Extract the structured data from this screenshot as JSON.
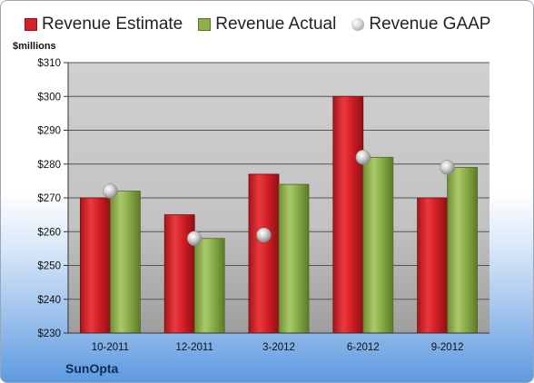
{
  "chart_data": {
    "type": "bar",
    "categories": [
      "10-2011",
      "12-2011",
      "3-2012",
      "6-2012",
      "9-2012"
    ],
    "series": [
      {
        "name": "Revenue Estimate",
        "values": [
          270,
          265,
          277,
          300,
          270
        ],
        "color": "#d42027",
        "kind": "bar"
      },
      {
        "name": "Revenue Actual",
        "values": [
          272,
          258,
          274,
          282,
          279
        ],
        "color": "#8cb04a",
        "kind": "bar"
      },
      {
        "name": "Revenue GAAP",
        "values": [
          272,
          258,
          259,
          282,
          279
        ],
        "color": "#b0b0b0",
        "kind": "marker"
      }
    ],
    "ylabel": "$millions",
    "ylim": [
      230,
      310
    ],
    "yticks": [
      230,
      240,
      250,
      260,
      270,
      280,
      290,
      300,
      310
    ],
    "ytick_labels": [
      "$230",
      "$240",
      "$250",
      "$260",
      "$270",
      "$280",
      "$290",
      "$300",
      "$310"
    ],
    "grid": true,
    "legend_position": "top",
    "plot_background": "#c8c8c8"
  },
  "footer": {
    "company": "SunOpta"
  }
}
